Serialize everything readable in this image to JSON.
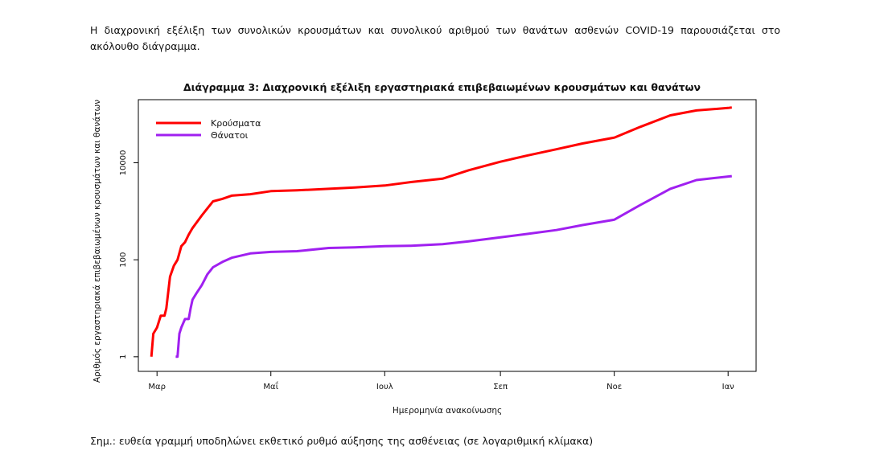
{
  "intro_text": "Η διαχρονική εξέλιξη των συνολικών κρουσμάτων και συνολικού αριθμού των θανάτων ασθενών COVID-19 παρουσιάζεται στο ακόλουθο διάγραμμα.",
  "note_text": "Σημ.: ευθεία γραμμή υποδηλώνει εκθετικό ρυθμό αύξησης της ασθένειας (σε λογαριθμική κλίμακα)",
  "chart_data": {
    "type": "line",
    "title": "Διάγραμμα 3: Διαχρονική εξέλιξη εργαστηριακά επιβεβαιωμένων κρουσμάτων και θανάτων",
    "xlabel": "Ημερομηνία ανακοίνωσης",
    "ylabel": "Αριθμός εργαστηριακά επιβεβαιωμένων κρουσμάτων και θανάτων",
    "y_scale": "log",
    "ylim": [
      0.5,
      200000
    ],
    "xlim": [
      "2020-02-20",
      "2021-01-16"
    ],
    "x_ticks": [
      {
        "date": "2020-03-01",
        "label": "Μαρ"
      },
      {
        "date": "2020-05-01",
        "label": "Μαΐ"
      },
      {
        "date": "2020-07-01",
        "label": "Ιουλ"
      },
      {
        "date": "2020-09-01",
        "label": "Σεπ"
      },
      {
        "date": "2020-11-01",
        "label": "Νοε"
      },
      {
        "date": "2021-01-01",
        "label": "Ιαν"
      }
    ],
    "y_ticks": [
      {
        "value": 1,
        "label": "1"
      },
      {
        "value": 100,
        "label": "100"
      },
      {
        "value": 10000,
        "label": "10000"
      }
    ],
    "legend_position": "top-left",
    "grid": false,
    "series": [
      {
        "name": "Κρούσματα",
        "color": "#ff0000",
        "x": [
          "2020-02-27",
          "2020-02-28",
          "2020-03-01",
          "2020-03-03",
          "2020-03-05",
          "2020-03-06",
          "2020-03-08",
          "2020-03-10",
          "2020-03-12",
          "2020-03-14",
          "2020-03-16",
          "2020-03-18",
          "2020-03-20",
          "2020-03-25",
          "2020-03-31",
          "2020-04-05",
          "2020-04-10",
          "2020-04-20",
          "2020-05-01",
          "2020-05-15",
          "2020-06-01",
          "2020-06-15",
          "2020-07-01",
          "2020-07-15",
          "2020-08-01",
          "2020-08-15",
          "2020-09-01",
          "2020-09-15",
          "2020-10-01",
          "2020-10-15",
          "2020-11-01",
          "2020-11-15",
          "2020-12-01",
          "2020-12-15",
          "2021-01-01",
          "2021-01-03"
        ],
        "values": [
          1,
          3,
          4,
          7,
          7,
          10,
          45,
          75,
          100,
          190,
          230,
          330,
          450,
          820,
          1600,
          1800,
          2100,
          2250,
          2600,
          2700,
          2900,
          3100,
          3400,
          4000,
          4700,
          7000,
          10500,
          14000,
          19000,
          25000,
          33000,
          55000,
          95000,
          120000,
          135000,
          138000
        ]
      },
      {
        "name": "Θάνατοι",
        "color": "#a020f0",
        "x": [
          "2020-03-11",
          "2020-03-12",
          "2020-03-13",
          "2020-03-14",
          "2020-03-16",
          "2020-03-18",
          "2020-03-19",
          "2020-03-20",
          "2020-03-22",
          "2020-03-25",
          "2020-03-28",
          "2020-03-31",
          "2020-04-05",
          "2020-04-10",
          "2020-04-20",
          "2020-05-01",
          "2020-05-15",
          "2020-06-01",
          "2020-06-15",
          "2020-07-01",
          "2020-07-15",
          "2020-08-01",
          "2020-08-15",
          "2020-09-01",
          "2020-09-15",
          "2020-10-01",
          "2020-10-15",
          "2020-11-01",
          "2020-11-15",
          "2020-12-01",
          "2020-12-15",
          "2021-01-01",
          "2021-01-03"
        ],
        "values": [
          1,
          1,
          3,
          4,
          6,
          6,
          10,
          15,
          20,
          30,
          50,
          70,
          90,
          110,
          135,
          145,
          150,
          175,
          180,
          190,
          195,
          210,
          240,
          290,
          340,
          410,
          520,
          670,
          1350,
          2900,
          4400,
          5200,
          5300
        ]
      }
    ]
  }
}
